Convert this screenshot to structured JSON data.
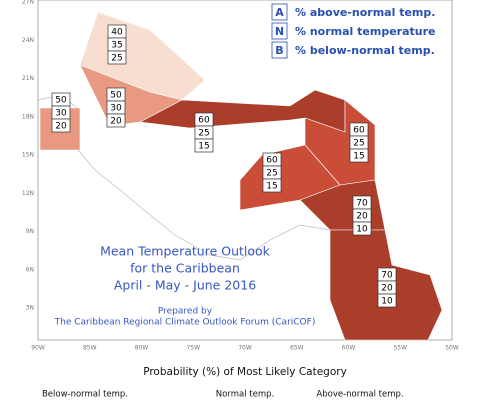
{
  "map": {
    "lat_labels": [
      "27N",
      "24N",
      "21N",
      "18N",
      "15N",
      "12N",
      "9N",
      "6N",
      "3N"
    ],
    "lon_labels": [
      "90W",
      "85W",
      "80W",
      "75W",
      "70W",
      "65W",
      "60W",
      "55W",
      "50W"
    ],
    "legend": [
      {
        "letter": "A",
        "text": "% above-normal temp."
      },
      {
        "letter": "N",
        "text": "% normal temperature"
      },
      {
        "letter": "B",
        "text": "% below-normal temp."
      }
    ],
    "regions": [
      {
        "values": [
          "40",
          "35",
          "25"
        ],
        "color": "#f8dccf"
      },
      {
        "values": [
          "50",
          "30",
          "20"
        ],
        "color": "#e8947b"
      },
      {
        "values": [
          "50",
          "30",
          "20"
        ],
        "color": "#e8947b"
      },
      {
        "values": [
          "60",
          "25",
          "15"
        ],
        "color": "#a63420"
      },
      {
        "values": [
          "60",
          "25",
          "15"
        ],
        "color": "#c8452d"
      },
      {
        "values": [
          "60",
          "25",
          "15"
        ],
        "color": "#c8452d"
      },
      {
        "values": [
          "70",
          "20",
          "10"
        ],
        "color": "#a63420"
      },
      {
        "values": [
          "70",
          "20",
          "10"
        ],
        "color": "#a63420"
      }
    ],
    "title": [
      "Mean Temperature Outlook",
      "for the Caribbean",
      "April - May - June 2016"
    ],
    "prepared": [
      "Prepared by",
      "The Caribbean Regional Climate Outlook Forum (CariCOF)"
    ],
    "footer": "Probability (%) of Most Likely Category",
    "categories": [
      "Below-normal temp.",
      "Normal temp.",
      "Above-normal temp."
    ]
  }
}
